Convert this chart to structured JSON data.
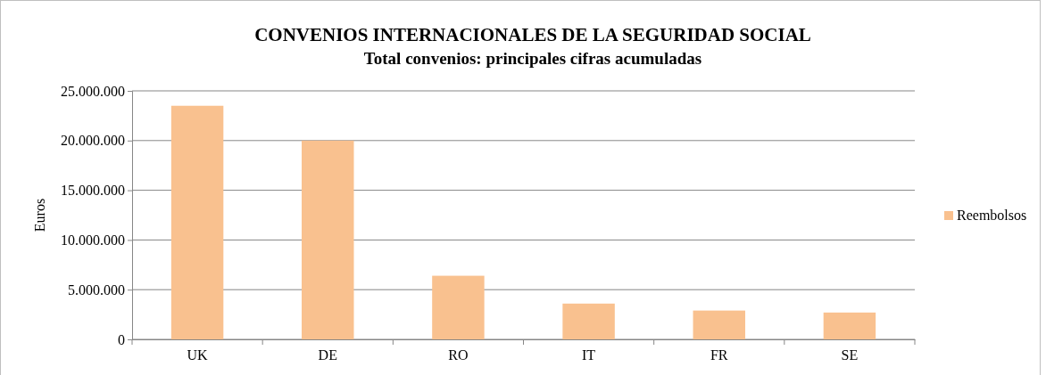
{
  "chart_data": {
    "type": "bar",
    "title": "CONVENIOS INTERNACIONALES DE LA SEGURIDAD SOCIAL",
    "subtitle": "Total convenios: principales cifras acumuladas",
    "ylabel": "Euros",
    "categories": [
      "UK",
      "DE",
      "RO",
      "IT",
      "FR",
      "SE"
    ],
    "series": [
      {
        "name": "Reembolsos",
        "color": "#f9c18f",
        "values": [
          23500000,
          20000000,
          6400000,
          3600000,
          2900000,
          2700000
        ]
      }
    ],
    "ylim": [
      0,
      25000000
    ],
    "yticks": [
      0,
      {
        "value": 5000000,
        "label": "5.000.000"
      },
      {
        "value": 10000000,
        "label": "10.000.000"
      },
      {
        "value": 15000000,
        "label": "15.000.000"
      },
      {
        "value": 20000000,
        "label": "20.000.000"
      },
      {
        "value": 25000000,
        "label": "25.000.000"
      }
    ],
    "grid": "y",
    "legend": "right"
  }
}
